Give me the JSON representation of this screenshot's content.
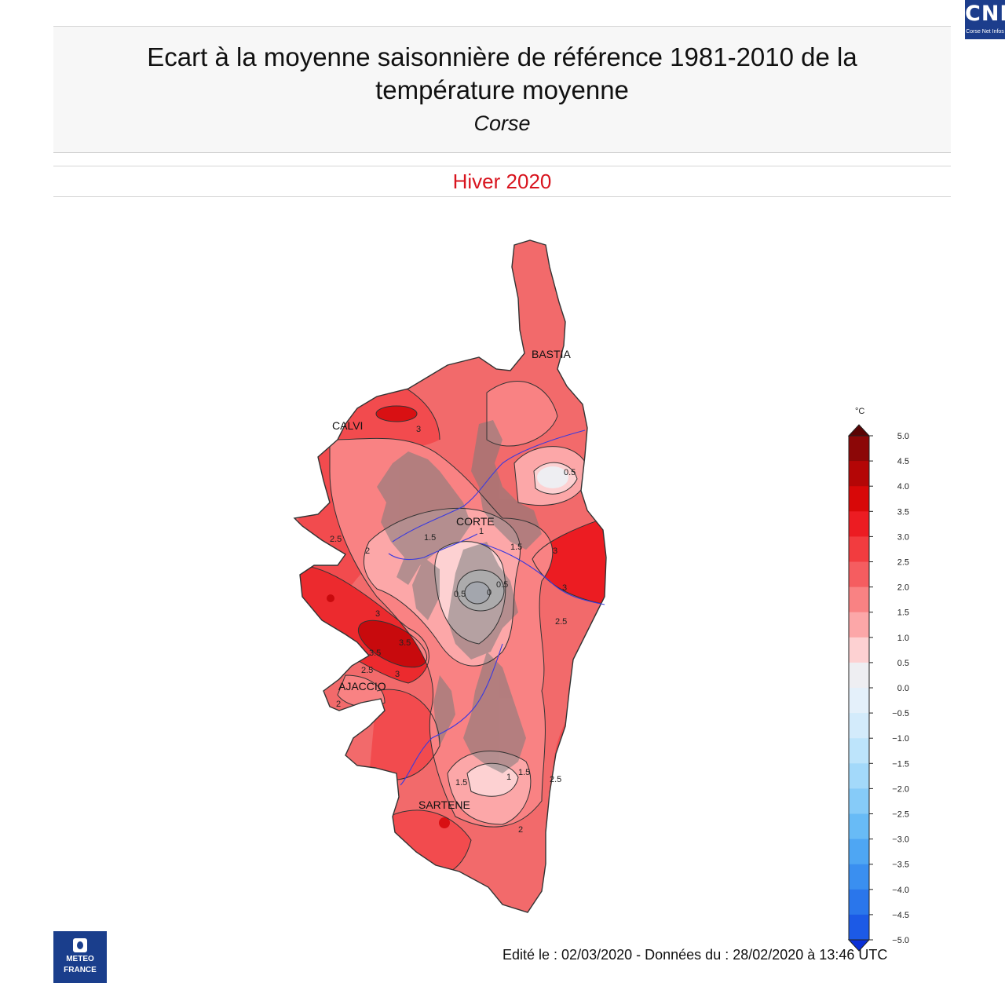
{
  "header": {
    "title": "Ecart à la moyenne saisonnière de référence 1981-2010 de la température moyenne",
    "region": "Corse"
  },
  "season": "Hiver 2020",
  "badge": {
    "text": "CNI",
    "subtext": "Corse Net Infos",
    "color": "#1c3d8c"
  },
  "logo": {
    "line1": "METEO",
    "line2": "FRANCE",
    "color": "#1a3e8c"
  },
  "footer": "Edité le : 02/03/2020 - Données du : 28/02/2020 à 13:46 UTC",
  "map": {
    "cities": [
      "BASTIA",
      "CALVI",
      "CORTE",
      "AJACCIO",
      "SARTENE"
    ],
    "contour_labels": [
      "3",
      "2.5",
      "2",
      "1.5",
      "1",
      "0.5",
      "0",
      "3.5"
    ]
  },
  "legend": {
    "unit": "°C",
    "ticks": [
      "5.0",
      "4.5",
      "4.0",
      "3.5",
      "3.0",
      "2.5",
      "2.0",
      "1.5",
      "1.0",
      "0.5",
      "0.0",
      "−0.5",
      "−1.0",
      "−1.5",
      "−2.0",
      "−2.5",
      "−3.0",
      "−3.5",
      "−4.0",
      "−4.5",
      "−5.0"
    ],
    "colors": [
      "#8c0707",
      "#b40606",
      "#d80808",
      "#ec1c22",
      "#f23c3f",
      "#f55d60",
      "#f98283",
      "#fca7a8",
      "#fdd1d2",
      "#eeeef2",
      "#e4f0fa",
      "#d3ebfb",
      "#bde4fb",
      "#a3d9fa",
      "#86cbf8",
      "#68bbf6",
      "#4ea6f3",
      "#3a8ff0",
      "#2a76eb",
      "#1c5ae6"
    ]
  }
}
